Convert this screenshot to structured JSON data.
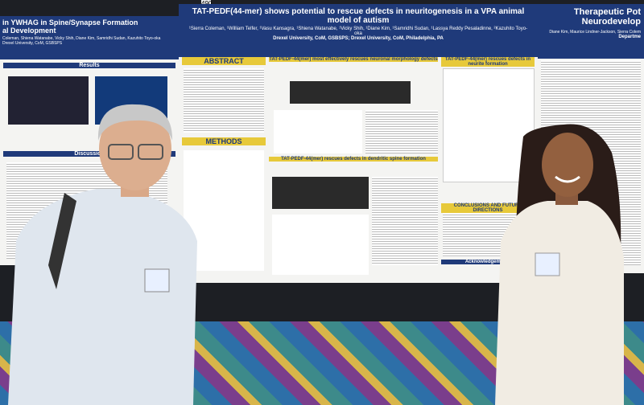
{
  "sign": "490",
  "left_poster": {
    "title_lines": [
      "in YWHAG in Spine/Synapse Formation",
      "al Development"
    ],
    "authors": "Coleman, Shiena Watanabe, Vicky Shih, Diane Kim, Samridhi Sudan, Kazuhito Toyo-oka",
    "affiliation": "Drexel University, CoM, GSBSPS",
    "sections": [
      "Results",
      "Discussion"
    ]
  },
  "main_poster": {
    "title": "TAT-PEDF(44-mer) shows potential to rescue defects in neuritogenesis in a VPA animal model of autism",
    "authors": "¹Sierra Coleman, ¹William Telfer, ¹Vasu Kansagra, ¹Shiena Watanabe, ¹Vicky Shih, ¹Diane Kim, ¹Samridhi Sudan, ¹Lassya Reddy Pesaladinne, ²Kazuhito Toyo-oka",
    "affiliation": "Drexel University, CoM, GSBSPS; Drexel University, CoM, Philadelphia, PA",
    "sections": [
      "ABSTRACT",
      "METHODS",
      "TAT-PEDF-44(mer) most effectively rescues neuronal morphology defects",
      "TAT-PEDF-44(mer) rescues defects in dendritic spine formation",
      "TAT-PEDF-44(mer) rescues defects in neurite formation",
      "CONCLUSIONS AND FUTURE DIRECTIONS",
      "Acknowledgements"
    ]
  },
  "right_poster": {
    "title_lines": [
      "Therapeutic Pot",
      "Neurodevelop"
    ],
    "authors": "Diane Kim, Maurice Lindner-Jackson, Sierra Colem",
    "department": "Departme"
  }
}
